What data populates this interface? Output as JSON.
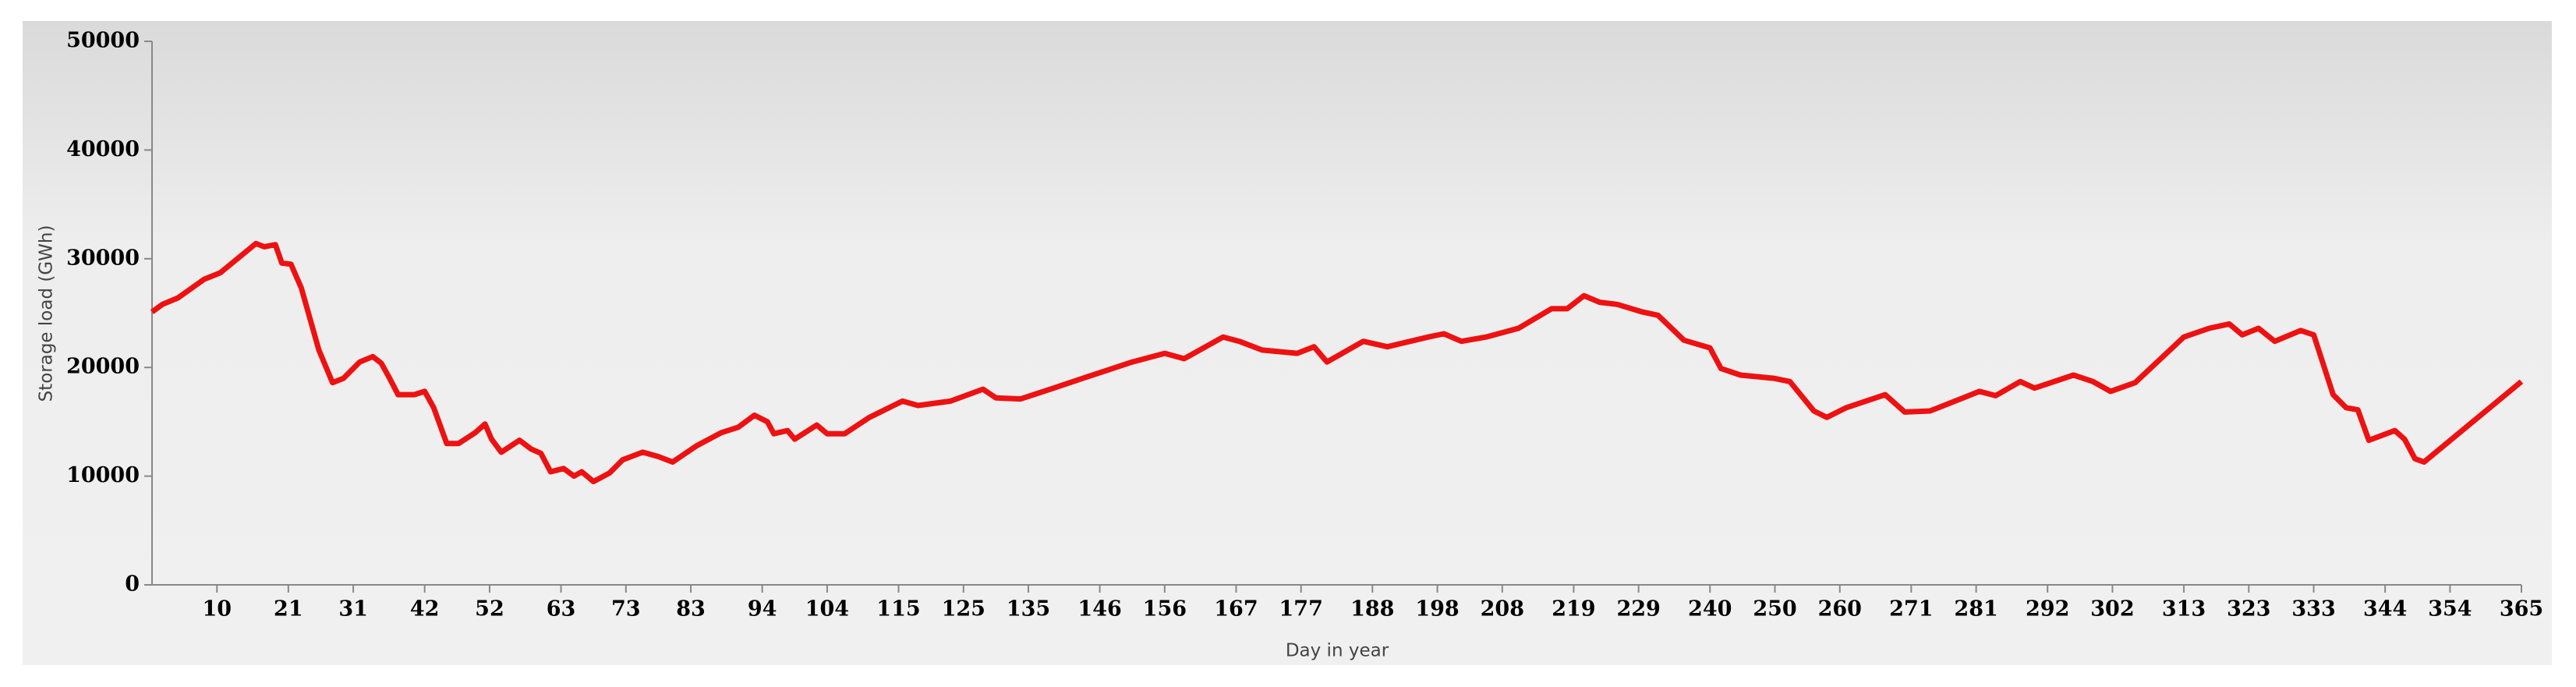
{
  "chart_data": {
    "type": "line",
    "x_label": "Day in year",
    "y_label": "Storage load (GWh)",
    "xlim": [
      0,
      365
    ],
    "ylim": [
      0,
      50000
    ],
    "xticks": [
      10,
      21,
      31,
      42,
      52,
      63,
      73,
      83,
      94,
      104,
      115,
      125,
      135,
      146,
      156,
      167,
      177,
      188,
      198,
      208,
      219,
      229,
      240,
      250,
      260,
      271,
      281,
      292,
      302,
      313,
      323,
      333,
      344,
      354,
      365
    ],
    "yticks": [
      0,
      10000,
      20000,
      30000,
      40000,
      50000
    ],
    "series": [
      {
        "color": "#ee1111",
        "x": [
          0,
          1.6,
          4,
          8,
          10.5,
          16,
          17.3,
          19,
          20,
          21.4,
          23,
          25.7,
          27.8,
          29.5,
          32,
          34,
          35.3,
          36.6,
          37.9,
          40.4,
          42,
          43.4,
          45.4,
          47.2,
          49.8,
          51.3,
          52.3,
          53.8,
          56.6,
          58.4,
          59.9,
          61.4,
          63.4,
          65,
          66.2,
          68,
          70.5,
          72.5,
          75.6,
          78,
          80.2,
          83.9,
          87.7,
          90.3,
          92.8,
          94.8,
          95.8,
          97.9,
          99,
          102.4,
          104,
          106.7,
          110.5,
          115.6,
          118,
          123,
          128,
          130,
          133.8,
          138.4,
          143.4,
          151,
          156,
          159,
          165,
          167.5,
          171,
          176.4,
          179,
          181,
          186.6,
          190.3,
          196.6,
          199,
          201.7,
          205.5,
          210.5,
          215.6,
          218,
          220.6,
          223,
          225.7,
          229.6,
          232,
          236,
          240,
          241.7,
          244.7,
          249.8,
          252.3,
          256,
          258,
          261,
          267,
          270,
          273.9,
          279,
          281.5,
          284,
          287.8,
          290,
          296,
          299,
          301.7,
          305.5,
          313,
          316.9,
          320,
          322,
          324.5,
          327,
          331,
          333,
          336,
          338,
          339.8,
          341.5,
          345.5,
          347,
          348.6,
          350,
          365
        ],
        "values": [
          25100,
          25800,
          26400,
          28100,
          28700,
          31400,
          31100,
          31300,
          29600,
          29500,
          27300,
          21600,
          18600,
          19000,
          20500,
          21000,
          20400,
          19000,
          17500,
          17500,
          17800,
          16300,
          13000,
          13000,
          14000,
          14800,
          13400,
          12200,
          13300,
          12500,
          12100,
          10400,
          10700,
          10000,
          10400,
          9500,
          10300,
          11500,
          12200,
          11800,
          11300,
          12800,
          14000,
          14500,
          15600,
          15000,
          13900,
          14200,
          13400,
          14700,
          13900,
          13900,
          15400,
          16900,
          16500,
          16900,
          18000,
          17200,
          17100,
          18000,
          19000,
          20500,
          21300,
          20800,
          22800,
          22400,
          21600,
          21300,
          21900,
          20500,
          22400,
          21900,
          22800,
          23100,
          22400,
          22800,
          23600,
          25400,
          25400,
          26600,
          26000,
          25800,
          25100,
          24800,
          22500,
          21800,
          19900,
          19300,
          19000,
          18700,
          16000,
          15400,
          16300,
          17500,
          15900,
          16000,
          17200,
          17800,
          17400,
          18700,
          18100,
          19300,
          18700,
          17800,
          18600,
          22800,
          23600,
          24000,
          23000,
          23600,
          22400,
          23400,
          23000,
          17500,
          16300,
          16100,
          13300,
          14200,
          13400,
          11600,
          11300,
          18700
        ]
      }
    ]
  }
}
